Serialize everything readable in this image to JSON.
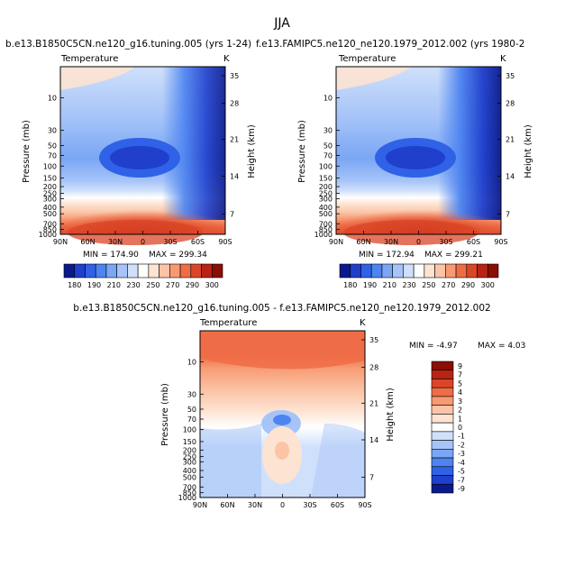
{
  "page": {
    "title": "JJA"
  },
  "chart_data": [
    {
      "type": "heatmap",
      "title": "b.e13.B1850C5CN.ne120_g16.tuning.005 (yrs 1-24)",
      "variable": "Temperature",
      "units": "K",
      "xlabel": "",
      "ylabel": "Pressure (mb)",
      "ylabel_right": "Height (km)",
      "x_ticks": [
        "90N",
        "60N",
        "30N",
        "0",
        "30S",
        "60S",
        "90S"
      ],
      "y_ticks": [
        "10",
        "30",
        "50",
        "70",
        "100",
        "150",
        "200",
        "250",
        "300",
        "400",
        "500",
        "700",
        "850",
        "1000"
      ],
      "y_ticks_right": [
        "35",
        "28",
        "21",
        "14",
        "7"
      ],
      "min_label": "MIN = 174.90",
      "max_label": "MAX = 299.34",
      "min": 174.9,
      "max": 299.34,
      "colorbar_labels": [
        "180",
        "190",
        "210",
        "230",
        "250",
        "270",
        "290",
        "300"
      ]
    },
    {
      "type": "heatmap",
      "title": "f.e13.FAMIPC5.ne120_ne120.1979_2012.002 (yrs 1980-2",
      "variable": "Temperature",
      "units": "K",
      "xlabel": "",
      "ylabel": "Pressure (mb)",
      "ylabel_right": "Height (km)",
      "x_ticks": [
        "90N",
        "60N",
        "30N",
        "0",
        "30S",
        "60S",
        "90S"
      ],
      "y_ticks": [
        "10",
        "30",
        "50",
        "70",
        "100",
        "150",
        "200",
        "250",
        "300",
        "400",
        "500",
        "700",
        "850",
        "1000"
      ],
      "y_ticks_right": [
        "35",
        "28",
        "21",
        "14",
        "7"
      ],
      "min_label": "MIN = 172.94",
      "max_label": "MAX = 299.21",
      "min": 172.94,
      "max": 299.21,
      "colorbar_labels": [
        "180",
        "190",
        "210",
        "230",
        "250",
        "270",
        "290",
        "300"
      ]
    },
    {
      "type": "heatmap",
      "title": "b.e13.B1850C5CN.ne120_g16.tuning.005 - f.e13.FAMIPC5.ne120_ne120.1979_2012.002",
      "variable": "Temperature",
      "units": "K",
      "xlabel": "",
      "ylabel": "Pressure (mb)",
      "ylabel_right": "Height (km)",
      "x_ticks": [
        "90N",
        "60N",
        "30N",
        "0",
        "30S",
        "60S",
        "90S"
      ],
      "y_ticks": [
        "10",
        "30",
        "50",
        "70",
        "100",
        "150",
        "200",
        "250",
        "300",
        "400",
        "500",
        "700",
        "850",
        "1000"
      ],
      "y_ticks_right": [
        "35",
        "28",
        "21",
        "14",
        "7"
      ],
      "min_label": "MIN = -4.97",
      "max_label": "MAX = 4.03",
      "min": -4.97,
      "max": 4.03,
      "colorbar_labels": [
        "9",
        "7",
        "5",
        "4",
        "3",
        "2",
        "1",
        "0",
        "-1",
        "-2",
        "-3",
        "-4",
        "-5",
        "-7",
        "-9"
      ]
    }
  ],
  "colors": {
    "abs_scale": [
      "#0a1a8c",
      "#1f3fcc",
      "#2f62e6",
      "#4d84f0",
      "#7aa6f4",
      "#a6c4f8",
      "#cfe0fb",
      "#ffffff",
      "#fde3d2",
      "#fbc4a6",
      "#f79a72",
      "#ee6d47",
      "#db4528",
      "#b82414",
      "#8a0d06"
    ],
    "diff_scale": [
      "#8a0d06",
      "#b82414",
      "#db4528",
      "#ee6d47",
      "#f79a72",
      "#fbc4a6",
      "#fde3d2",
      "#ffffff",
      "#cfe0fb",
      "#a6c4f8",
      "#7aa6f4",
      "#4d84f0",
      "#2f62e6",
      "#1f3fcc",
      "#0a1a8c"
    ]
  }
}
